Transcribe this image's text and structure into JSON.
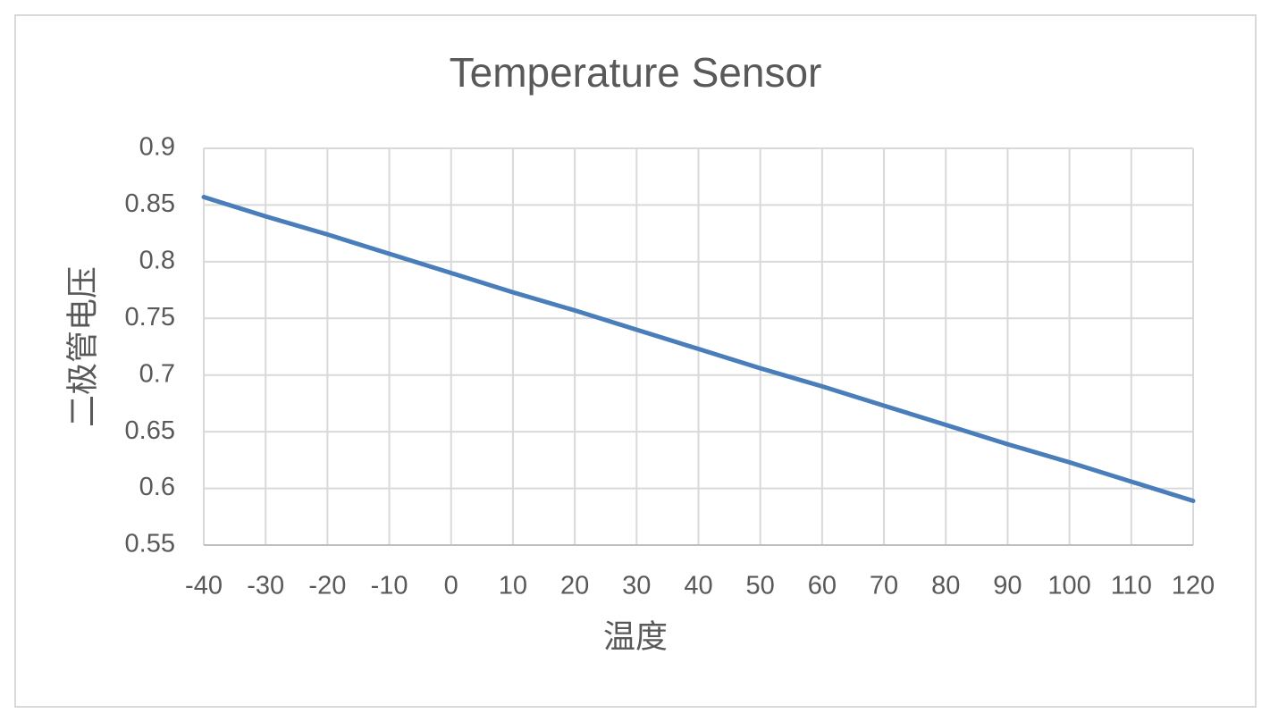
{
  "chart_data": {
    "type": "line",
    "title": "Temperature Sensor",
    "x_label": "温度",
    "y_label": "二极管电压",
    "x": [
      -40,
      -30,
      -20,
      -10,
      0,
      10,
      20,
      30,
      40,
      50,
      60,
      70,
      80,
      90,
      100,
      110,
      120
    ],
    "series": [
      {
        "name": "二极管电压",
        "color": "#4a7ebb",
        "values": [
          0.857,
          0.84,
          0.824,
          0.807,
          0.79,
          0.773,
          0.757,
          0.74,
          0.723,
          0.706,
          0.69,
          0.673,
          0.656,
          0.639,
          0.623,
          0.606,
          0.589
        ]
      }
    ],
    "xlim": [
      -40,
      120
    ],
    "xticks": [
      -40,
      -30,
      -20,
      -10,
      0,
      10,
      20,
      30,
      40,
      50,
      60,
      70,
      80,
      90,
      100,
      110,
      120
    ],
    "ylim": [
      0.55,
      0.9
    ],
    "yticks": [
      0.55,
      0.6,
      0.65,
      0.7,
      0.75,
      0.8,
      0.85,
      0.9
    ],
    "grid": true,
    "legend": false
  }
}
